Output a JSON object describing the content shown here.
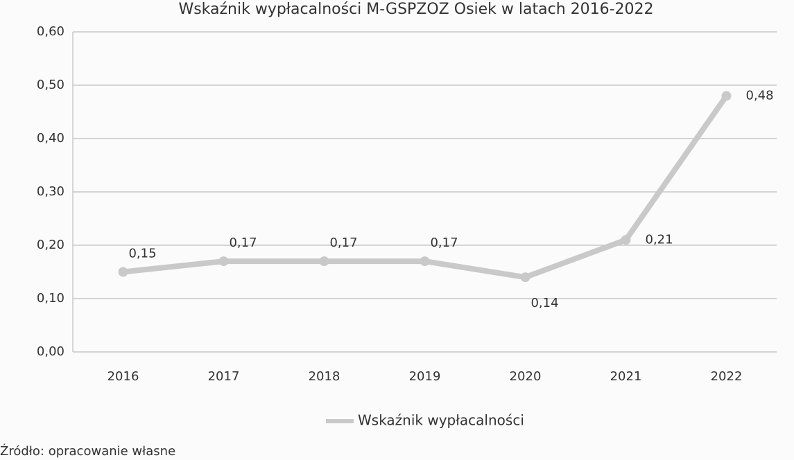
{
  "chart_data": {
    "type": "line",
    "title": "Wskaźnik wypłacalności M-GSPZOZ Osiek w latach 2016-2022",
    "categories": [
      "2016",
      "2017",
      "2018",
      "2019",
      "2020",
      "2021",
      "2022"
    ],
    "series": [
      {
        "name": "Wskaźnik wypłacalności",
        "color": "#c9c9c9",
        "values": [
          0.15,
          0.17,
          0.17,
          0.17,
          0.14,
          0.21,
          0.48
        ],
        "value_labels": [
          "0,15",
          "0,17",
          "0,17",
          "0,17",
          "0,14",
          "0,21",
          "0,48"
        ]
      }
    ],
    "ylim": [
      0,
      0.6
    ],
    "yticks": [
      {
        "value": 0,
        "label": "0,00"
      },
      {
        "value": 0.1,
        "label": "0,10"
      },
      {
        "value": 0.2,
        "label": "0,20"
      },
      {
        "value": 0.3,
        "label": "0,30"
      },
      {
        "value": 0.4,
        "label": "0,40"
      },
      {
        "value": 0.5,
        "label": "0,50"
      },
      {
        "value": 0.6,
        "label": "0,60"
      }
    ],
    "grid": true,
    "legend": "bottom",
    "source": "Źródło: opracowanie własne"
  }
}
